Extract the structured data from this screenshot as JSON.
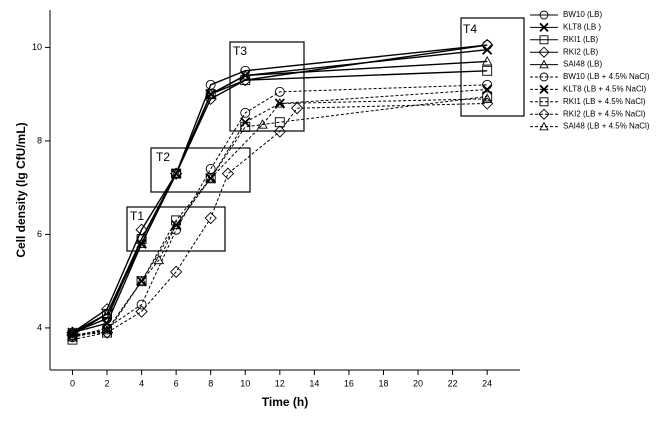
{
  "chart_data": {
    "type": "line",
    "xlabel": "Time (h)",
    "ylabel": "Cell density (lg CfU/mL)",
    "xlim": [
      -1.3,
      25.9
    ],
    "xticks": [
      0,
      2,
      4,
      6,
      8,
      10,
      12,
      14,
      16,
      18,
      20,
      22,
      24
    ],
    "ylim": [
      3.1,
      10.8
    ],
    "yticks": [
      4,
      6,
      8,
      10
    ],
    "legend": "right",
    "annotations": [
      {
        "text": "T1"
      },
      {
        "text": "T2"
      },
      {
        "text": "T3"
      },
      {
        "text": "T4"
      }
    ],
    "series": [
      {
        "name": "BW10 (LB)",
        "color": "#000000",
        "marker": "circle",
        "dashed": false,
        "x": [
          0,
          2,
          4,
          6,
          8,
          10,
          24
        ],
        "values": [
          3.9,
          4.2,
          5.9,
          7.3,
          9.2,
          9.5,
          10.05
        ]
      },
      {
        "name": "KLT8 (LB )",
        "color": "#000000",
        "marker": "x",
        "dashed": false,
        "x": [
          0,
          2,
          4,
          6,
          8,
          10,
          24
        ],
        "values": [
          3.9,
          4.1,
          5.8,
          7.3,
          9.0,
          9.4,
          9.95
        ]
      },
      {
        "name": "RKI1 (LB)",
        "color": "#000000",
        "marker": "square",
        "dashed": false,
        "x": [
          0,
          2,
          4,
          6,
          8,
          10,
          24
        ],
        "values": [
          3.85,
          4.3,
          5.9,
          7.3,
          9.0,
          9.3,
          9.5
        ]
      },
      {
        "name": "RKI2 (LB)",
        "color": "#000000",
        "marker": "diamond",
        "dashed": false,
        "x": [
          0,
          2,
          4,
          6,
          8,
          10,
          24
        ],
        "values": [
          3.9,
          4.4,
          6.1,
          7.3,
          8.9,
          9.3,
          10.05
        ]
      },
      {
        "name": "SAI48 (LB)",
        "color": "#000000",
        "marker": "triangle",
        "dashed": false,
        "x": [
          0,
          2,
          4,
          6,
          8,
          10,
          24
        ],
        "values": [
          3.9,
          4.3,
          5.8,
          7.3,
          9.0,
          9.4,
          9.7
        ]
      },
      {
        "name": "BW10 (LB + 4.5% NaCl)",
        "color": "#000000",
        "marker": "circle",
        "dashed": true,
        "x": [
          0,
          2,
          4,
          6,
          8,
          10,
          12,
          24
        ],
        "values": [
          3.8,
          4.0,
          4.5,
          6.1,
          7.4,
          8.6,
          9.05,
          9.2
        ]
      },
      {
        "name": "KLT8 (LB + 4.5% NaCl)",
        "color": "#000000",
        "marker": "x",
        "dashed": true,
        "x": [
          0,
          2,
          4,
          6,
          8,
          10,
          12,
          24
        ],
        "values": [
          3.85,
          3.95,
          5.0,
          6.2,
          7.2,
          8.4,
          8.8,
          9.1
        ]
      },
      {
        "name": "RKI1 (LB + 4.5% NaCl)",
        "color": "#000000",
        "marker": "square",
        "dashed": true,
        "x": [
          0,
          2,
          4,
          6,
          8,
          10,
          12,
          24
        ],
        "values": [
          3.75,
          3.9,
          5.0,
          6.3,
          7.2,
          8.3,
          8.4,
          8.95
        ]
      },
      {
        "name": "RKI2 (LB + 4.5% NaCl)",
        "color": "#000000",
        "marker": "diamond",
        "dashed": true,
        "x": [
          0,
          2,
          4,
          6,
          8,
          9,
          12,
          13,
          24
        ],
        "values": [
          3.85,
          3.9,
          4.35,
          5.2,
          6.35,
          7.3,
          8.2,
          8.7,
          8.8
        ]
      },
      {
        "name": "SAI48 (LB + 4.5% NaCl)",
        "color": "#000000",
        "marker": "triangle",
        "dashed": true,
        "x": [
          0,
          2,
          4,
          5,
          6,
          8,
          11,
          12,
          24
        ],
        "values": [
          3.8,
          3.95,
          5.0,
          5.45,
          6.2,
          7.2,
          8.35,
          8.8,
          8.9
        ]
      }
    ]
  }
}
